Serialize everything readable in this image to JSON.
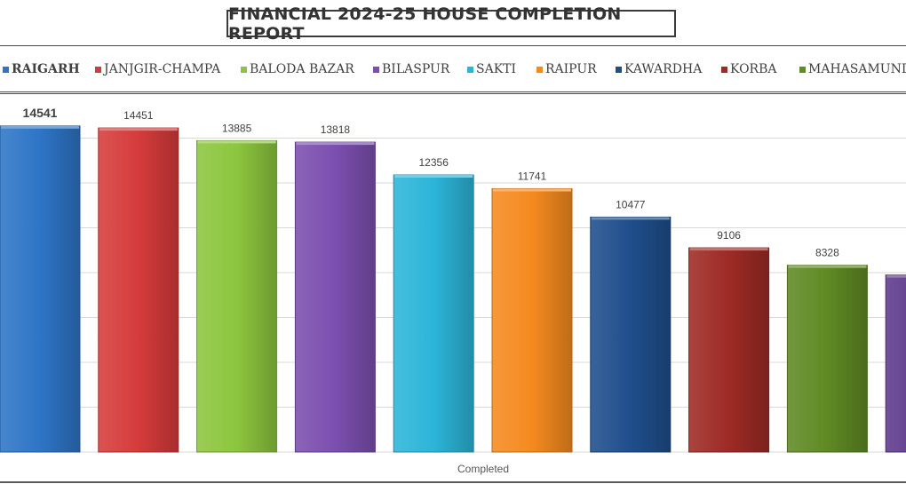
{
  "title": "FINANCIAL 2024-25 HOUSE COMPLETION REPORT",
  "chart_data": {
    "type": "bar",
    "title": "FINANCIAL 2024-25 HOUSE COMPLETION REPORT",
    "xlabel": "Completed",
    "ylabel": "",
    "categories": [
      "Completed"
    ],
    "series": [
      {
        "name": "RAIGARH",
        "values": [
          14541
        ],
        "color": "#2E75C6"
      },
      {
        "name": "JANJGIR-CHAMPA",
        "values": [
          14451
        ],
        "color": "#D63B3B"
      },
      {
        "name": "BALODA BAZAR",
        "values": [
          13885
        ],
        "color": "#8CC63E"
      },
      {
        "name": "BILASPUR",
        "values": [
          13818
        ],
        "color": "#7B4FAF"
      },
      {
        "name": "SAKTI",
        "values": [
          12356
        ],
        "color": "#2CB5D8"
      },
      {
        "name": "RAIPUR",
        "values": [
          11741
        ],
        "color": "#F58A1F"
      },
      {
        "name": "KAWARDHA",
        "values": [
          10477
        ],
        "color": "#1F4E8C"
      },
      {
        "name": "KORBA",
        "values": [
          9106
        ],
        "color": "#9E2A25"
      },
      {
        "name": "MAHASAMUND",
        "values": [
          8328
        ],
        "color": "#5F8A24"
      },
      {
        "name": "",
        "values": [
          null
        ],
        "color": "#5E3A8C"
      }
    ],
    "ylim": [
      0,
      16000
    ],
    "grid": true,
    "legend_position": "top"
  }
}
